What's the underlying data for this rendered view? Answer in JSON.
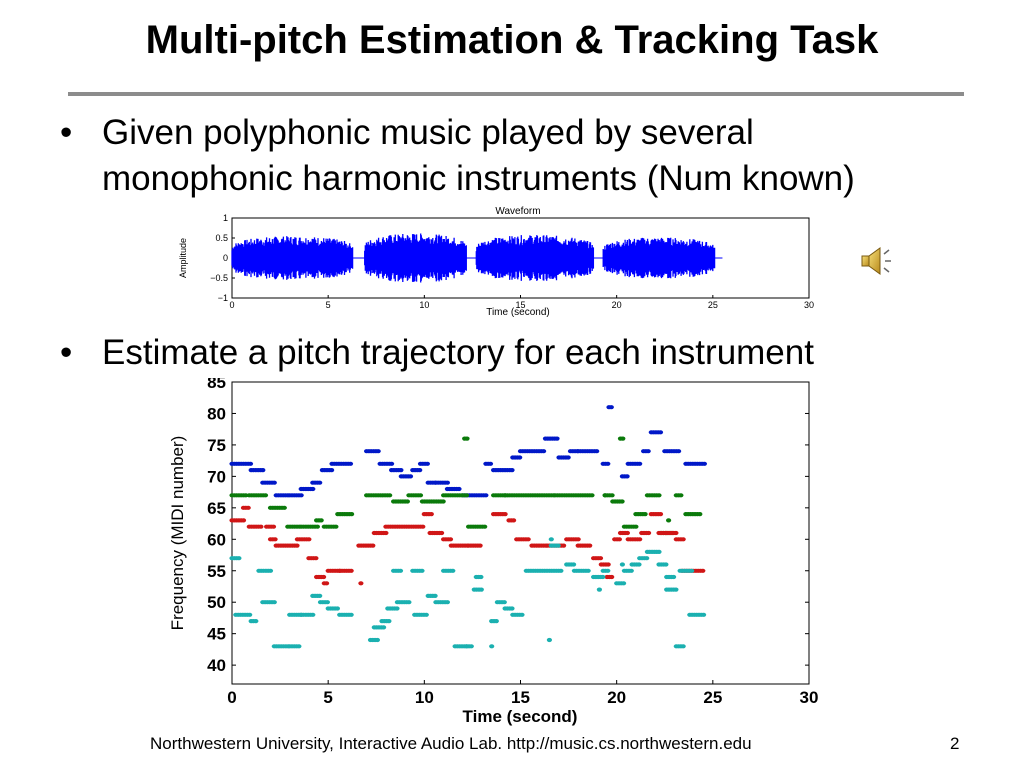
{
  "slide": {
    "title": "Multi-pitch Estimation & Tracking Task",
    "bullets": [
      {
        "line1": "Given polyphonic music played by several",
        "line2": "monophonic harmonic instruments (Num known)"
      },
      {
        "line1": "Estimate a pitch trajectory for each instrument"
      }
    ],
    "bullet_symbol": "•",
    "footer": "Northwestern University, Interactive Audio Lab. http://music.cs.northwestern.edu",
    "page_number": "2",
    "speaker_icon": "speaker-icon"
  },
  "chart_data": [
    {
      "type": "area",
      "title": "Waveform",
      "xlabel": "Time (second)",
      "ylabel": "Amplitude",
      "xlim": [
        0,
        30
      ],
      "ylim": [
        -1,
        1
      ],
      "xticks": [
        "0",
        "5",
        "10",
        "15",
        "20",
        "25",
        "30"
      ],
      "yticks": [
        "1",
        "0.5",
        "0",
        "−0.5",
        "−1"
      ],
      "color": "#0000ff",
      "segments": [
        [
          0,
          6.3,
          0.55
        ],
        [
          6.9,
          12.2,
          0.62
        ],
        [
          12.7,
          18.8,
          0.58
        ],
        [
          19.3,
          25.1,
          0.52
        ]
      ]
    },
    {
      "type": "scatter",
      "xlabel": "Time (second)",
      "ylabel": "Frequency (MIDI number)",
      "xlim": [
        0,
        30
      ],
      "ylim": [
        37,
        85
      ],
      "xticks": [
        "0",
        "5",
        "10",
        "15",
        "20",
        "25",
        "30"
      ],
      "yticks": [
        "85",
        "80",
        "75",
        "70",
        "65",
        "60",
        "55",
        "50",
        "45",
        "40"
      ],
      "series": [
        {
          "color": "#0018c8",
          "segments": [
            [
              0,
              1,
              72
            ],
            [
              1,
              1.6,
              71
            ],
            [
              1.6,
              2.2,
              69
            ],
            [
              2.3,
              3,
              67
            ],
            [
              3,
              3.6,
              67
            ],
            [
              3.6,
              4.2,
              68
            ],
            [
              4.2,
              4.6,
              69
            ],
            [
              4.7,
              5.2,
              71
            ],
            [
              5.2,
              6.2,
              72
            ],
            [
              7,
              7.7,
              74
            ],
            [
              7.7,
              8.3,
              72
            ],
            [
              8.3,
              8.8,
              71
            ],
            [
              8.8,
              9.3,
              70
            ],
            [
              9.4,
              9.8,
              71
            ],
            [
              9.8,
              10.2,
              72
            ],
            [
              10.2,
              10.6,
              69
            ],
            [
              10.6,
              11.2,
              69
            ],
            [
              11.2,
              11.8,
              68
            ],
            [
              12,
              13.2,
              67
            ],
            [
              13.2,
              13.5,
              72
            ],
            [
              13.6,
              14.6,
              71
            ],
            [
              14.6,
              15,
              73
            ],
            [
              15,
              16.3,
              74
            ],
            [
              16.3,
              17,
              76
            ],
            [
              17,
              17.5,
              73
            ],
            [
              17.6,
              18,
              74
            ],
            [
              18,
              19,
              74
            ],
            [
              19.3,
              19.6,
              72
            ],
            [
              19.6,
              19.8,
              81
            ],
            [
              20.3,
              20.6,
              70
            ],
            [
              20.6,
              21.2,
              72
            ],
            [
              21.4,
              21.7,
              74
            ],
            [
              21.8,
              22.3,
              77
            ],
            [
              22.5,
              23.3,
              74
            ],
            [
              23.6,
              24.6,
              72
            ]
          ]
        },
        {
          "color": "#0b7a0b",
          "segments": [
            [
              0,
              0.8,
              67
            ],
            [
              0.9,
              1.8,
              67
            ],
            [
              2,
              2.8,
              65
            ],
            [
              2.9,
              3.6,
              62
            ],
            [
              3.6,
              4.5,
              62
            ],
            [
              4.4,
              4.7,
              63
            ],
            [
              4.8,
              5.4,
              62
            ],
            [
              5.5,
              6.3,
              64
            ],
            [
              7,
              8.3,
              67
            ],
            [
              8.4,
              9.2,
              66
            ],
            [
              9.2,
              9.9,
              67
            ],
            [
              9.9,
              11,
              66
            ],
            [
              11,
              12.2,
              67
            ],
            [
              12.1,
              12.3,
              76
            ],
            [
              12.3,
              13.2,
              62
            ],
            [
              13.6,
              14.2,
              67
            ],
            [
              14.2,
              16.8,
              67
            ],
            [
              16.8,
              18.8,
              67
            ],
            [
              19.4,
              19.8,
              67
            ],
            [
              19.8,
              20.3,
              66
            ],
            [
              20.2,
              20.4,
              76
            ],
            [
              20.4,
              21,
              62
            ],
            [
              21,
              21.5,
              64
            ],
            [
              21.6,
              22.3,
              67
            ],
            [
              22.3,
              22.9,
              61
            ],
            [
              23.1,
              23.4,
              67
            ],
            [
              23.6,
              24.4,
              64
            ]
          ]
        },
        {
          "color": "#d01616",
          "segments": [
            [
              0,
              0.6,
              63
            ],
            [
              0.6,
              0.9,
              65
            ],
            [
              0.9,
              1.6,
              62
            ],
            [
              1.8,
              2.2,
              62
            ],
            [
              2,
              2.3,
              60
            ],
            [
              2.3,
              3.4,
              59
            ],
            [
              3.4,
              4,
              60
            ],
            [
              4,
              4.4,
              57
            ],
            [
              4.4,
              4.8,
              54
            ],
            [
              4.8,
              5,
              53
            ],
            [
              5,
              5.6,
              55
            ],
            [
              5.6,
              6.2,
              55
            ],
            [
              6.6,
              7.4,
              59
            ],
            [
              7.4,
              8,
              61
            ],
            [
              8,
              10,
              62
            ],
            [
              10,
              10.4,
              64
            ],
            [
              10.3,
              11,
              61
            ],
            [
              11,
              11.4,
              60
            ],
            [
              11.4,
              12.3,
              59
            ],
            [
              12.3,
              13,
              59
            ],
            [
              13.6,
              14.3,
              64
            ],
            [
              14.4,
              14.7,
              63
            ],
            [
              14.8,
              15.4,
              60
            ],
            [
              15.6,
              16.4,
              59
            ],
            [
              16.4,
              17.3,
              59
            ],
            [
              17.4,
              18,
              60
            ],
            [
              18,
              18.6,
              59
            ],
            [
              18.8,
              19.2,
              57
            ],
            [
              19.2,
              19.6,
              56
            ],
            [
              19.5,
              19.8,
              54
            ],
            [
              19.9,
              20.2,
              60
            ],
            [
              20.2,
              20.6,
              61
            ],
            [
              20.6,
              21.3,
              60
            ],
            [
              21.3,
              21.7,
              61
            ],
            [
              21.8,
              22.3,
              64
            ],
            [
              22.2,
              22.6,
              61
            ],
            [
              22.6,
              23.1,
              61
            ],
            [
              23.1,
              23.5,
              60
            ],
            [
              23.4,
              24.5,
              55
            ]
          ]
        },
        {
          "color": "#1bb0b0",
          "segments": [
            [
              0,
              0.4,
              57
            ],
            [
              0.2,
              1,
              48
            ],
            [
              1,
              1.3,
              47
            ],
            [
              1.4,
              2,
              55
            ],
            [
              1.6,
              2.2,
              50
            ],
            [
              2.2,
              3,
              43
            ],
            [
              3,
              3.5,
              43
            ],
            [
              3,
              3.6,
              48
            ],
            [
              3.6,
              4.2,
              48
            ],
            [
              4.2,
              4.6,
              51
            ],
            [
              4.6,
              5,
              50
            ],
            [
              5,
              5.5,
              49
            ],
            [
              5.6,
              6.2,
              48
            ],
            [
              7.2,
              7.6,
              44
            ],
            [
              7.4,
              7.9,
              46
            ],
            [
              7.8,
              8.2,
              47
            ],
            [
              8.1,
              8.6,
              49
            ],
            [
              8.4,
              8.8,
              55
            ],
            [
              8.6,
              9.2,
              50
            ],
            [
              9.4,
              9.9,
              55
            ],
            [
              9.5,
              10.2,
              48
            ],
            [
              10.2,
              10.6,
              51
            ],
            [
              10.6,
              11.2,
              50
            ],
            [
              11,
              11.5,
              55
            ],
            [
              11.6,
              12.2,
              43
            ],
            [
              12.2,
              12.5,
              43
            ],
            [
              12.6,
              13,
              52
            ],
            [
              12.7,
              13,
              54
            ],
            [
              13.5,
              13.8,
              47
            ],
            [
              13.8,
              14.2,
              50
            ],
            [
              14.2,
              14.6,
              49
            ],
            [
              14.6,
              15.1,
              48
            ],
            [
              15.3,
              17.2,
              55
            ],
            [
              16.6,
              17,
              59
            ],
            [
              17.4,
              17.8,
              56
            ],
            [
              17.8,
              18.6,
              55
            ],
            [
              18.8,
              19.3,
              54
            ],
            [
              19.3,
              19.6,
              55
            ],
            [
              20,
              20.4,
              53
            ],
            [
              20.4,
              20.8,
              55
            ],
            [
              20.8,
              21.2,
              56
            ],
            [
              21.2,
              21.6,
              57
            ],
            [
              21.6,
              22.2,
              58
            ],
            [
              22.2,
              22.6,
              56
            ],
            [
              22.6,
              23,
              54
            ],
            [
              22.6,
              23.1,
              52
            ],
            [
              23.1,
              23.5,
              43
            ],
            [
              23.3,
              23.9,
              55
            ],
            [
              23.8,
              24.6,
              48
            ]
          ]
        }
      ],
      "points": [
        {
          "x": 13.5,
          "y": 43,
          "color": "#1bb0b0"
        },
        {
          "x": 16.5,
          "y": 44,
          "color": "#1bb0b0"
        },
        {
          "x": 19.1,
          "y": 52,
          "color": "#1bb0b0"
        },
        {
          "x": 20.3,
          "y": 56,
          "color": "#1bb0b0"
        },
        {
          "x": 6.7,
          "y": 53,
          "color": "#d01616"
        },
        {
          "x": 16.6,
          "y": 60,
          "color": "#1bb0b0"
        },
        {
          "x": 19.4,
          "y": 67,
          "color": "#0b7a0b"
        },
        {
          "x": 22.7,
          "y": 63,
          "color": "#0b7a0b"
        }
      ]
    }
  ]
}
